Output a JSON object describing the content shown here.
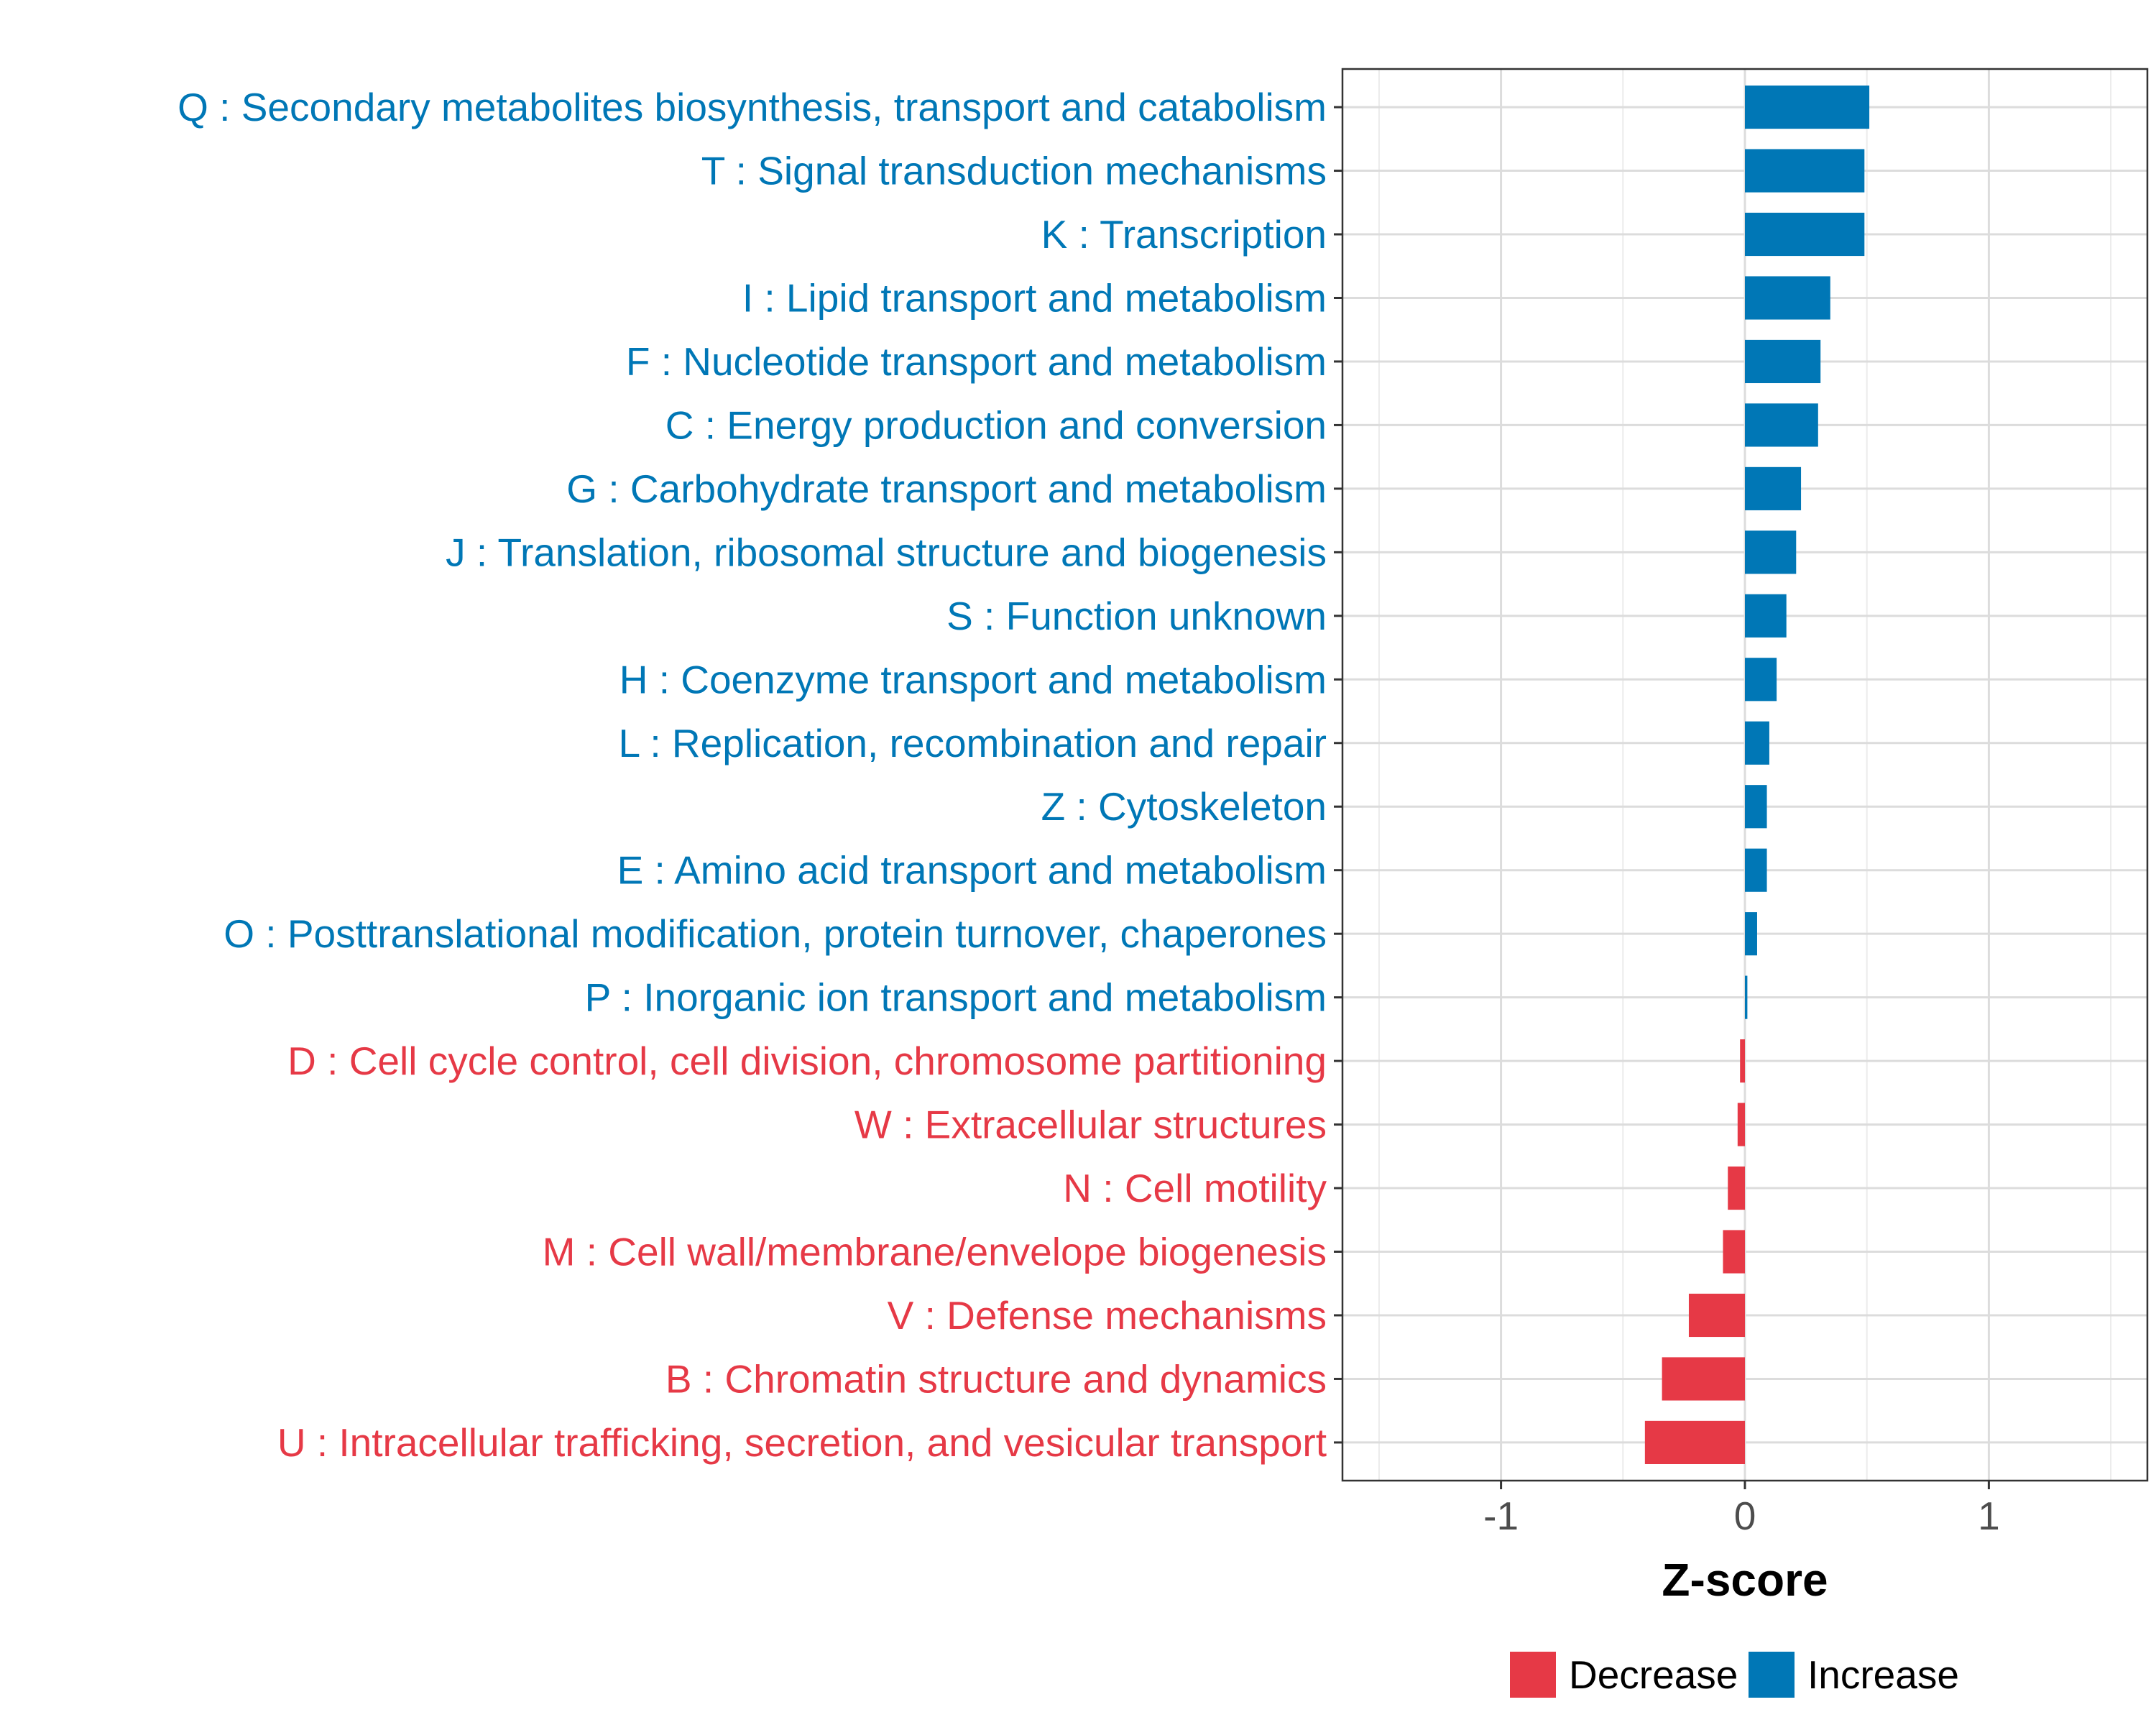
{
  "chart_data": {
    "type": "bar",
    "orientation": "horizontal",
    "xlabel": "Z-score",
    "xlim": [
      -1.65,
      1.65
    ],
    "xticks": [
      -1,
      0,
      1
    ],
    "xtick_labels": [
      "-1",
      "0",
      "1"
    ],
    "grid": true,
    "colors": {
      "Decrease": "#e63946",
      "Increase": "#0077b6"
    },
    "categories": [
      "Q : Secondary metabolites biosynthesis, transport and catabolism",
      "T : Signal transduction mechanisms",
      "K : Transcription",
      "I : Lipid transport and metabolism",
      "F : Nucleotide transport and metabolism",
      "C : Energy production and conversion",
      "G : Carbohydrate transport and metabolism",
      "J : Translation, ribosomal structure and biogenesis",
      "S : Function unknown",
      "H : Coenzyme transport and metabolism",
      "L : Replication, recombination and repair",
      "Z : Cytoskeleton",
      "E : Amino acid transport and metabolism",
      "O : Posttranslational modification, protein turnover, chaperones",
      "P : Inorganic ion transport and metabolism",
      "D : Cell cycle control, cell division, chromosome partitioning",
      "W : Extracellular structures",
      "N : Cell motility",
      "M : Cell wall/membrane/envelope biogenesis",
      "V : Defense mechanisms",
      "B : Chromatin structure and dynamics",
      "U : Intracellular trafficking, secretion, and vesicular transport"
    ],
    "values": [
      0.51,
      0.49,
      0.49,
      0.35,
      0.31,
      0.3,
      0.23,
      0.21,
      0.17,
      0.13,
      0.1,
      0.09,
      0.09,
      0.05,
      0.01,
      -0.02,
      -0.03,
      -0.07,
      -0.09,
      -0.23,
      -0.34,
      -0.41
    ],
    "groups": [
      "Increase",
      "Increase",
      "Increase",
      "Increase",
      "Increase",
      "Increase",
      "Increase",
      "Increase",
      "Increase",
      "Increase",
      "Increase",
      "Increase",
      "Increase",
      "Increase",
      "Increase",
      "Decrease",
      "Decrease",
      "Decrease",
      "Decrease",
      "Decrease",
      "Decrease",
      "Decrease"
    ],
    "legend": {
      "position": "bottom",
      "entries": [
        {
          "label": "Decrease",
          "color": "#e63946"
        },
        {
          "label": "Increase",
          "color": "#0077b6"
        }
      ]
    }
  }
}
